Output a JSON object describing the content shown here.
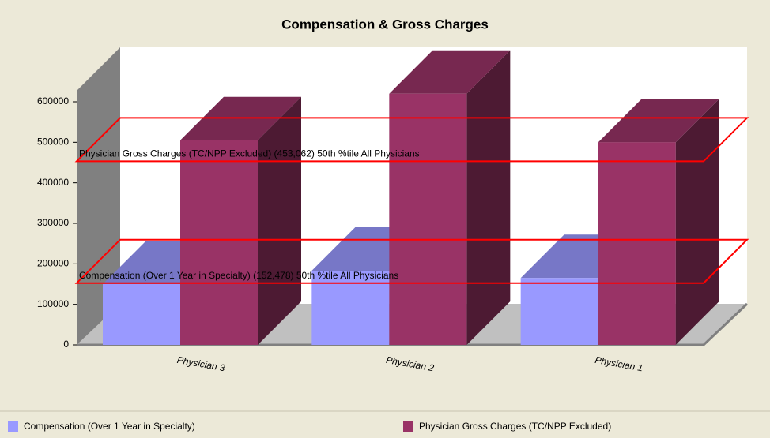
{
  "chart_data": {
    "type": "bar3d",
    "title": "Compensation & Gross Charges",
    "categories": [
      "Physician 3",
      "Physician 2",
      "Physician 1"
    ],
    "series": [
      {
        "name": "Compensation (Over 1 Year in Specialty)",
        "color": "#9999ff",
        "values": [
          150000,
          183000,
          165000
        ]
      },
      {
        "name": "Physician Gross Charges (TC/NPP Excluded)",
        "color": "#993366",
        "values": [
          505000,
          620000,
          500000
        ]
      }
    ],
    "ylim": [
      0,
      600000
    ],
    "yticks": [
      0,
      100000,
      200000,
      300000,
      400000,
      500000,
      600000
    ],
    "reference_lines": [
      {
        "value": 453062,
        "label": "Physician Gross Charges (TC/NPP Excluded) (453,062) 50th %tile All Physicians"
      },
      {
        "value": 152478,
        "label": "Compensation (Over 1 Year in Specialty) (152,478) 50th %tile All Physicians"
      }
    ],
    "reference_color": "#ff0000",
    "legend": "bottom"
  }
}
